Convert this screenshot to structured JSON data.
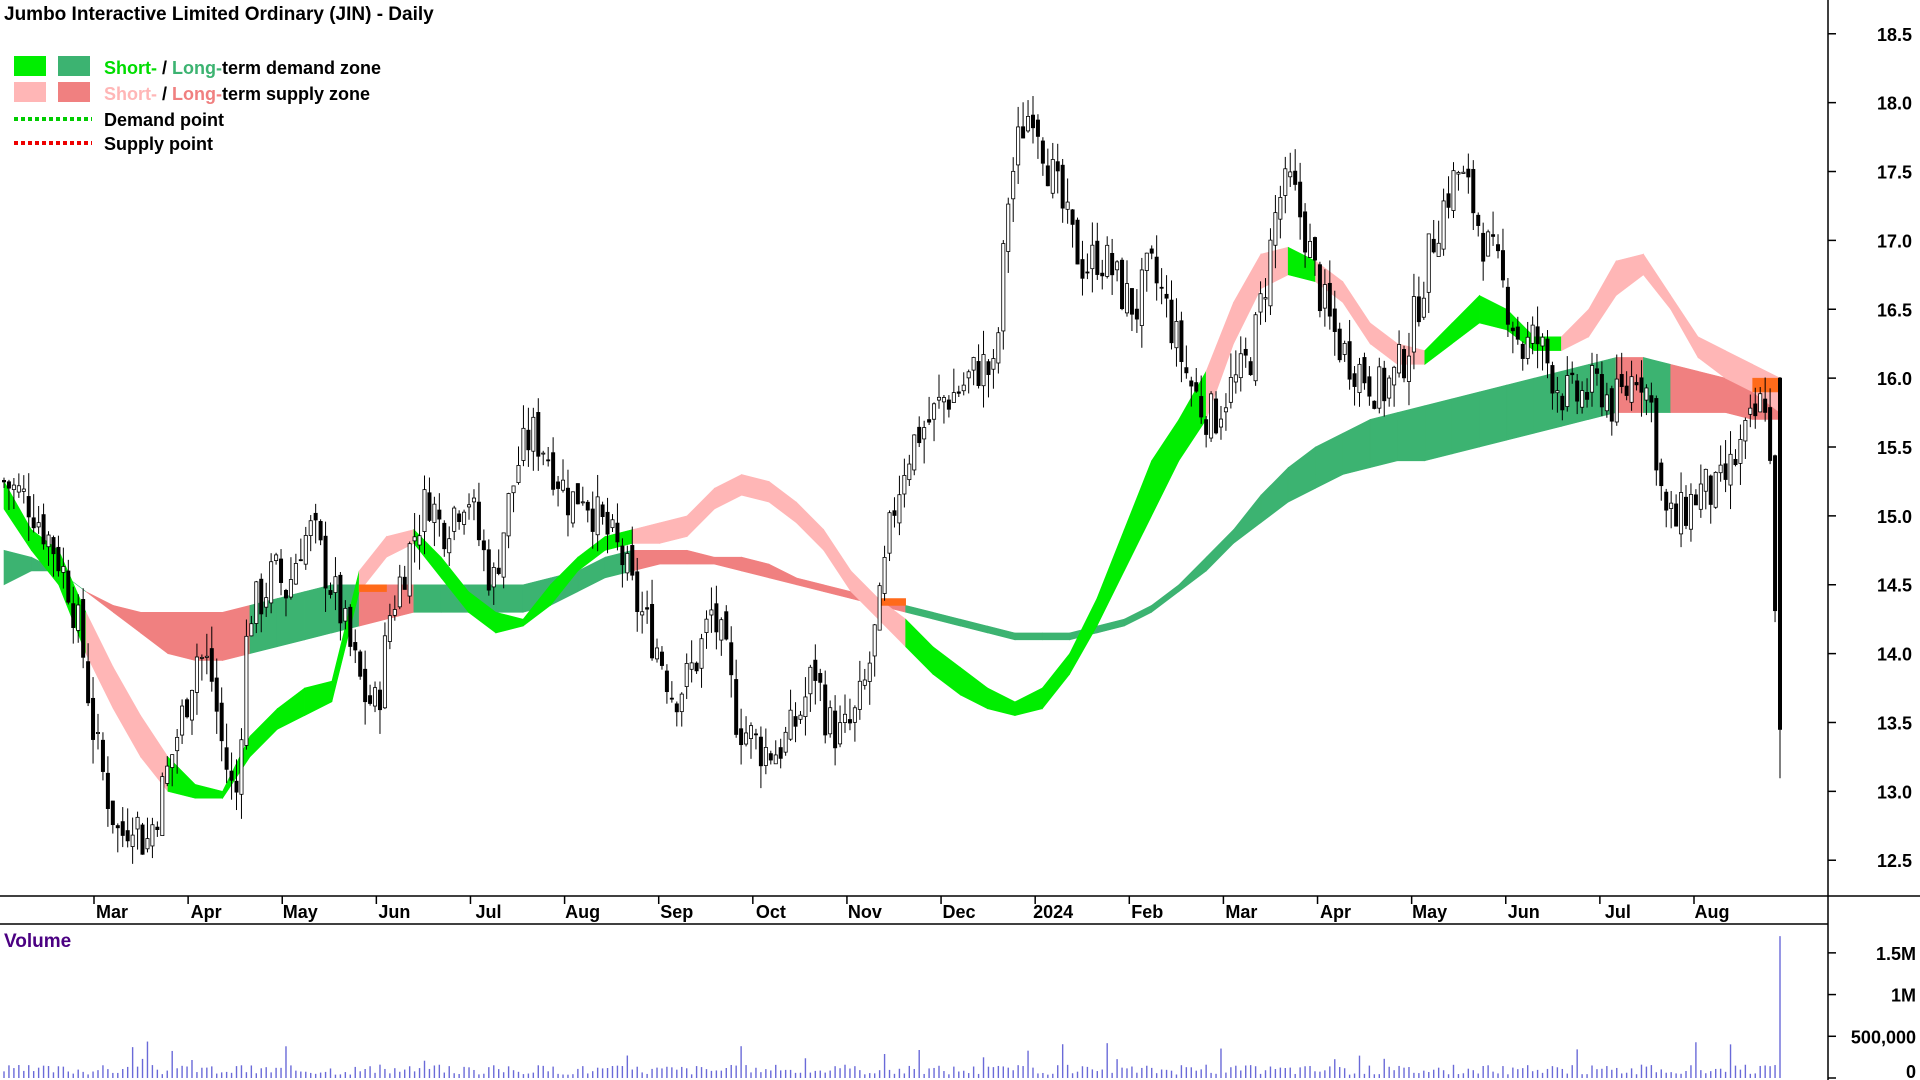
{
  "chart_data": {
    "type": "candlestick",
    "title": "Jumbo Interactive Limited Ordinary (JIN) - Daily",
    "legend": {
      "demand": {
        "short": "Short-",
        "sep": " / ",
        "long": "Long-",
        "rest": "term demand zone"
      },
      "supply": {
        "short": "Short-",
        "sep": " / ",
        "long": "Long-",
        "rest": "term supply zone"
      },
      "demand_point": "Demand point",
      "supply_point": "Supply point"
    },
    "colors": {
      "short_demand": "#00ee00",
      "long_demand": "#3cb371",
      "short_supply": "#ffb6b6",
      "long_supply": "#f08080",
      "supply_orange": "#ff6a1a",
      "demand_point": "#00cc00",
      "supply_point": "#ee0000",
      "volume": "#6a6ad8"
    },
    "x_months": [
      "Mar",
      "Apr",
      "May",
      "Jun",
      "Jul",
      "Aug",
      "Sep",
      "Oct",
      "Nov",
      "Dec",
      "2024",
      "Feb",
      "Mar",
      "Apr",
      "May",
      "Jun",
      "Jul",
      "Aug"
    ],
    "price_ticks": [
      "18.5",
      "18.0",
      "17.5",
      "17.0",
      "16.5",
      "16.0",
      "15.5",
      "15.0",
      "14.5",
      "14.0",
      "13.5",
      "13.0",
      "12.5"
    ],
    "ylim": [
      12.4,
      18.6
    ],
    "volume_label": "Volume",
    "volume_ticks": [
      "1.5M",
      "1M",
      "500,000",
      "0"
    ],
    "price_path": [
      {
        "t": 0,
        "p": 15.25
      },
      {
        "t": 2,
        "p": 15.1
      },
      {
        "t": 4,
        "p": 14.75
      },
      {
        "t": 5,
        "p": 14.5
      },
      {
        "t": 6,
        "p": 14.1
      },
      {
        "t": 7,
        "p": 13.4
      },
      {
        "t": 8,
        "p": 13.0
      },
      {
        "t": 9,
        "p": 12.65
      },
      {
        "t": 10,
        "p": 12.85
      },
      {
        "t": 11,
        "p": 12.6
      },
      {
        "t": 12,
        "p": 12.9
      },
      {
        "t": 13,
        "p": 13.25
      },
      {
        "t": 14,
        "p": 13.6
      },
      {
        "t": 15,
        "p": 14.0
      },
      {
        "t": 16,
        "p": 13.9
      },
      {
        "t": 17,
        "p": 13.3
      },
      {
        "t": 18,
        "p": 12.9
      },
      {
        "t": 19,
        "p": 14.3
      },
      {
        "t": 20,
        "p": 14.4
      },
      {
        "t": 21,
        "p": 14.6
      },
      {
        "t": 22,
        "p": 14.45
      },
      {
        "t": 23,
        "p": 14.8
      },
      {
        "t": 24,
        "p": 14.9
      },
      {
        "t": 25,
        "p": 14.6
      },
      {
        "t": 26,
        "p": 14.35
      },
      {
        "t": 27,
        "p": 14.0
      },
      {
        "t": 28,
        "p": 13.7
      },
      {
        "t": 29,
        "p": 13.6
      },
      {
        "t": 30,
        "p": 14.3
      },
      {
        "t": 31,
        "p": 14.6
      },
      {
        "t": 32,
        "p": 14.9
      },
      {
        "t": 33,
        "p": 15.15
      },
      {
        "t": 34,
        "p": 14.9
      },
      {
        "t": 35,
        "p": 15.05
      },
      {
        "t": 36,
        "p": 15.2
      },
      {
        "t": 37,
        "p": 14.8
      },
      {
        "t": 38,
        "p": 14.5
      },
      {
        "t": 39,
        "p": 15.0
      },
      {
        "t": 40,
        "p": 15.4
      },
      {
        "t": 41,
        "p": 15.6
      },
      {
        "t": 42,
        "p": 15.5
      },
      {
        "t": 43,
        "p": 15.3
      },
      {
        "t": 44,
        "p": 15.1
      },
      {
        "t": 45,
        "p": 15.2
      },
      {
        "t": 46,
        "p": 15.0
      },
      {
        "t": 47,
        "p": 14.85
      },
      {
        "t": 48,
        "p": 14.7
      },
      {
        "t": 49,
        "p": 14.4
      },
      {
        "t": 50,
        "p": 14.2
      },
      {
        "t": 51,
        "p": 14.0
      },
      {
        "t": 52,
        "p": 13.7
      },
      {
        "t": 53,
        "p": 13.8
      },
      {
        "t": 54,
        "p": 14.0
      },
      {
        "t": 55,
        "p": 14.3
      },
      {
        "t": 56,
        "p": 14.0
      },
      {
        "t": 57,
        "p": 13.5
      },
      {
        "t": 58,
        "p": 13.4
      },
      {
        "t": 59,
        "p": 13.3
      },
      {
        "t": 60,
        "p": 13.3
      },
      {
        "t": 61,
        "p": 13.4
      },
      {
        "t": 62,
        "p": 13.6
      },
      {
        "t": 63,
        "p": 13.9
      },
      {
        "t": 64,
        "p": 13.5
      },
      {
        "t": 65,
        "p": 13.4
      },
      {
        "t": 66,
        "p": 13.5
      },
      {
        "t": 67,
        "p": 13.8
      },
      {
        "t": 68,
        "p": 14.3
      },
      {
        "t": 69,
        "p": 15.0
      },
      {
        "t": 70,
        "p": 15.4
      },
      {
        "t": 71,
        "p": 15.6
      },
      {
        "t": 72,
        "p": 15.7
      },
      {
        "t": 73,
        "p": 15.85
      },
      {
        "t": 74,
        "p": 15.9
      },
      {
        "t": 75,
        "p": 16.0
      },
      {
        "t": 76,
        "p": 16.1
      },
      {
        "t": 77,
        "p": 16.0
      },
      {
        "t": 78,
        "p": 17.3
      },
      {
        "t": 79,
        "p": 17.8
      },
      {
        "t": 80,
        "p": 18.0
      },
      {
        "t": 81,
        "p": 17.6
      },
      {
        "t": 82,
        "p": 17.3
      },
      {
        "t": 83,
        "p": 17.0
      },
      {
        "t": 84,
        "p": 16.8
      },
      {
        "t": 85,
        "p": 16.9
      },
      {
        "t": 86,
        "p": 16.8
      },
      {
        "t": 87,
        "p": 16.6
      },
      {
        "t": 88,
        "p": 16.5
      },
      {
        "t": 89,
        "p": 16.8
      },
      {
        "t": 90,
        "p": 16.6
      },
      {
        "t": 91,
        "p": 16.3
      },
      {
        "t": 92,
        "p": 16.0
      },
      {
        "t": 93,
        "p": 15.8
      },
      {
        "t": 94,
        "p": 15.7
      },
      {
        "t": 95,
        "p": 15.9
      },
      {
        "t": 96,
        "p": 16.0
      },
      {
        "t": 97,
        "p": 16.2
      },
      {
        "t": 98,
        "p": 16.7
      },
      {
        "t": 99,
        "p": 17.3
      },
      {
        "t": 100,
        "p": 17.4
      },
      {
        "t": 101,
        "p": 17.1
      },
      {
        "t": 102,
        "p": 16.7
      },
      {
        "t": 103,
        "p": 16.4
      },
      {
        "t": 104,
        "p": 16.2
      },
      {
        "t": 105,
        "p": 16.1
      },
      {
        "t": 106,
        "p": 16.0
      },
      {
        "t": 107,
        "p": 15.9
      },
      {
        "t": 108,
        "p": 16.0
      },
      {
        "t": 109,
        "p": 16.2
      },
      {
        "t": 110,
        "p": 16.6
      },
      {
        "t": 111,
        "p": 17.0
      },
      {
        "t": 112,
        "p": 17.3
      },
      {
        "t": 113,
        "p": 17.5
      },
      {
        "t": 114,
        "p": 17.3
      },
      {
        "t": 115,
        "p": 17.0
      },
      {
        "t": 116,
        "p": 16.8
      },
      {
        "t": 117,
        "p": 16.5
      },
      {
        "t": 118,
        "p": 16.2
      },
      {
        "t": 119,
        "p": 16.3
      },
      {
        "t": 120,
        "p": 16.1
      },
      {
        "t": 121,
        "p": 15.9
      },
      {
        "t": 122,
        "p": 15.85
      },
      {
        "t": 123,
        "p": 15.9
      },
      {
        "t": 124,
        "p": 15.95
      },
      {
        "t": 125,
        "p": 15.8
      },
      {
        "t": 126,
        "p": 15.9
      },
      {
        "t": 127,
        "p": 16.1
      },
      {
        "t": 128,
        "p": 15.8
      },
      {
        "t": 129,
        "p": 15.0
      },
      {
        "t": 130,
        "p": 14.95
      },
      {
        "t": 131,
        "p": 15.1
      },
      {
        "t": 132,
        "p": 15.2
      },
      {
        "t": 133,
        "p": 15.15
      },
      {
        "t": 134,
        "p": 15.3
      },
      {
        "t": 135,
        "p": 15.5
      },
      {
        "t": 136,
        "p": 15.7
      },
      {
        "t": 137,
        "p": 15.9
      },
      {
        "t": 138,
        "p": 13.5
      }
    ],
    "zones": {
      "short_upper": [
        15.25,
        14.9,
        14.75,
        14.3,
        13.9,
        13.55,
        13.25,
        13.05,
        13.0,
        13.4,
        13.6,
        13.75,
        13.8,
        14.6,
        14.85,
        14.9,
        14.7,
        14.45,
        14.3,
        14.25,
        14.5,
        14.7,
        14.85,
        14.9,
        14.95,
        15.0,
        15.2,
        15.3,
        15.25,
        15.1,
        14.9,
        14.6,
        14.4,
        14.25,
        14.05,
        13.9,
        13.75,
        13.65,
        13.75,
        14.0,
        14.4,
        14.9,
        15.4,
        15.7,
        16.05,
        16.55,
        16.9,
        16.95,
        16.85,
        16.7,
        16.4,
        16.25,
        16.2,
        16.4,
        16.6,
        16.5,
        16.3,
        16.3,
        16.5,
        16.85,
        16.9,
        16.6,
        16.3,
        16.2,
        16.1,
        16.0
      ],
      "short_lower": [
        15.05,
        14.75,
        14.5,
        14.0,
        13.6,
        13.25,
        13.0,
        12.95,
        12.95,
        13.25,
        13.45,
        13.55,
        13.65,
        14.45,
        14.7,
        14.8,
        14.55,
        14.3,
        14.15,
        14.2,
        14.35,
        14.6,
        14.75,
        14.8,
        14.8,
        14.85,
        15.05,
        15.15,
        15.1,
        14.95,
        14.75,
        14.45,
        14.25,
        14.05,
        13.85,
        13.7,
        13.6,
        13.55,
        13.6,
        13.85,
        14.2,
        14.6,
        15.0,
        15.4,
        15.7,
        16.25,
        16.65,
        16.75,
        16.7,
        16.55,
        16.25,
        16.1,
        16.1,
        16.25,
        16.4,
        16.35,
        16.2,
        16.2,
        16.3,
        16.6,
        16.75,
        16.5,
        16.15,
        16.0,
        15.9,
        15.75
      ],
      "long_upper": [
        14.75,
        14.7,
        14.6,
        14.45,
        14.35,
        14.3,
        14.3,
        14.3,
        14.3,
        14.35,
        14.4,
        14.45,
        14.5,
        14.5,
        14.5,
        14.5,
        14.5,
        14.5,
        14.5,
        14.5,
        14.55,
        14.6,
        14.7,
        14.75,
        14.75,
        14.75,
        14.7,
        14.7,
        14.65,
        14.55,
        14.5,
        14.45,
        14.4,
        14.35,
        14.3,
        14.25,
        14.2,
        14.15,
        14.15,
        14.15,
        14.2,
        14.25,
        14.35,
        14.5,
        14.7,
        14.9,
        15.15,
        15.35,
        15.5,
        15.6,
        15.7,
        15.75,
        15.8,
        15.85,
        15.9,
        15.95,
        16.0,
        16.05,
        16.1,
        16.15,
        16.15,
        16.1,
        16.05,
        16.0,
        16.0,
        16.0
      ],
      "long_lower": [
        14.5,
        14.6,
        14.6,
        14.45,
        14.3,
        14.15,
        14.0,
        13.95,
        13.95,
        14.0,
        14.05,
        14.1,
        14.15,
        14.2,
        14.25,
        14.3,
        14.3,
        14.3,
        14.3,
        14.3,
        14.35,
        14.45,
        14.55,
        14.6,
        14.65,
        14.65,
        14.65,
        14.6,
        14.55,
        14.5,
        14.45,
        14.4,
        14.35,
        14.3,
        14.25,
        14.2,
        14.15,
        14.1,
        14.1,
        14.1,
        14.15,
        14.2,
        14.3,
        14.45,
        14.6,
        14.8,
        14.95,
        15.1,
        15.2,
        15.3,
        15.35,
        15.4,
        15.4,
        15.45,
        15.5,
        15.55,
        15.6,
        15.65,
        15.7,
        15.75,
        15.75,
        15.75,
        15.75,
        15.75,
        15.7,
        15.7
      ]
    }
  }
}
